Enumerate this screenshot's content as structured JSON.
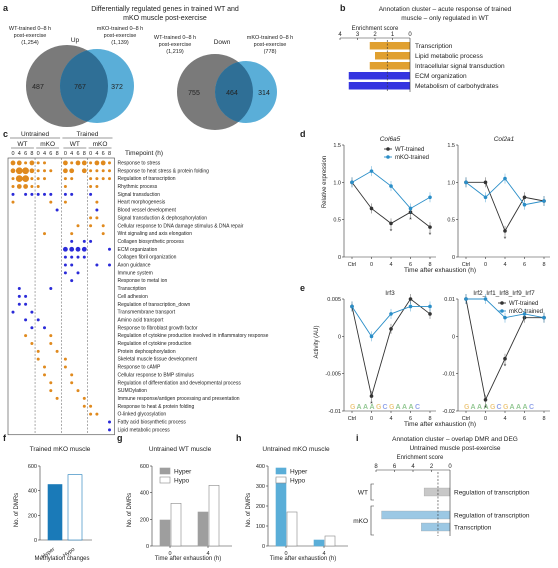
{
  "panels": {
    "a": {
      "label": "a",
      "title_line1": "Differentially regulated genes in trained WT and",
      "title_line2": "mKO muscle post-exercise",
      "up": {
        "direction": "Up",
        "left_label1": "WT-trained 0–8 h",
        "left_label2": "post-exercise",
        "left_count": "(1,254)",
        "right_label1": "mKO-trained 0–8 h",
        "right_label2": "post-exercise",
        "right_count": "(1,139)",
        "only_left": "487",
        "overlap": "767",
        "only_right": "372"
      },
      "down": {
        "direction": "Down",
        "left_label1": "WT-trained 0–8 h",
        "left_label2": "post-exercise",
        "left_count": "(1,219)",
        "right_label1": "mKO-trained 0–8 h",
        "right_label2": "post-exercise",
        "right_count": "(778)",
        "only_left": "755",
        "overlap": "464",
        "only_right": "314"
      },
      "colors": {
        "wt": "#7a7a7a",
        "mko": "#5aaed8",
        "overlap": "#2f6f96"
      }
    },
    "b": {
      "label": "b",
      "title_line1": "Annotation cluster – acute response of trained",
      "title_line2": "muscle – only regulated in WT",
      "axis_title": "Enrichment score",
      "chart_data": {
        "type": "bar",
        "orientation": "horizontal",
        "xlabel": "Enrichment score",
        "xlim": [
          4,
          0
        ],
        "xticks": [
          4,
          3,
          2,
          1,
          0
        ],
        "threshold": 1.3,
        "categories": [
          "Transcription",
          "Lipid metabolic process",
          "Intracellular signal transduction",
          "ECM organization",
          "Metabolism of carbohydrates"
        ],
        "values": [
          2.3,
          2.0,
          2.3,
          3.5,
          3.5
        ],
        "colors": [
          "#e0a030",
          "#e0a030",
          "#e0a030",
          "#3535e0",
          "#3535e0"
        ]
      }
    },
    "c": {
      "label": "c",
      "groups": [
        {
          "name": "Untrained",
          "subgroups": [
            "WT",
            "mKO"
          ]
        },
        {
          "name": "Trained",
          "subgroups": [
            "WT",
            "mKO"
          ]
        }
      ],
      "timepoints": [
        "0",
        "4",
        "6",
        "8"
      ],
      "timepoint_label": "Timepoint (h)",
      "terms": [
        "Response to stress",
        "Response to heat stress & protein folding",
        "Regulation of transcription",
        "Rhythmic process",
        "Signal transduction",
        "Heart morphogenesis",
        "Blood vessel development",
        "Signal transduction & dephosphorylation",
        "Cellular response to DNA damage stimulus & DNA repair",
        "Wnt signaling and axis elongation",
        "Collagen biosynthetic process",
        "ECM organization",
        "Collagen fibril organization",
        "Axon guidance",
        "Immune system",
        "Response to metal ion",
        "Transcription",
        "Cell adhesion",
        "Regulation of transcription_down",
        "Transmembrane transport",
        "Amino acid transport",
        "Response to fibroblast growth factor",
        "Regulation of cytokine production involved in inflammatory response",
        "Regulation of cytokine production",
        "Protein dephosphorylation",
        "Skeletal muscle tissue development",
        "Response to cAMP",
        "Cellular response to BMP stimulus",
        "Regulation of differentiation and developmental process",
        "SUMOylation",
        "Immune response/antigen processing and presentation",
        "Response to heat & protein folding",
        "O-linked glycosylation",
        "Fatty acid biosynthetic process",
        "Lipid metabolic process"
      ],
      "dots": [
        [
          0,
          0,
          2
        ],
        [
          0,
          1,
          2
        ],
        [
          0,
          2,
          1
        ],
        [
          0,
          3,
          2
        ],
        [
          0,
          4,
          1
        ],
        [
          0,
          5,
          1
        ],
        [
          0,
          8,
          2
        ],
        [
          0,
          9,
          1
        ],
        [
          0,
          10,
          2
        ],
        [
          0,
          11,
          2
        ],
        [
          0,
          12,
          1
        ],
        [
          0,
          13,
          2
        ],
        [
          0,
          14,
          2
        ],
        [
          0,
          15,
          1
        ],
        [
          1,
          0,
          2
        ],
        [
          1,
          1,
          3
        ],
        [
          1,
          2,
          3
        ],
        [
          1,
          3,
          2
        ],
        [
          1,
          4,
          1
        ],
        [
          1,
          5,
          1
        ],
        [
          1,
          6,
          1
        ],
        [
          1,
          8,
          2
        ],
        [
          1,
          9,
          2
        ],
        [
          1,
          11,
          2
        ],
        [
          1,
          12,
          1
        ],
        [
          1,
          13,
          1
        ],
        [
          1,
          14,
          1
        ],
        [
          1,
          15,
          1
        ],
        [
          2,
          0,
          1
        ],
        [
          2,
          1,
          3
        ],
        [
          2,
          2,
          3
        ],
        [
          2,
          3,
          1
        ],
        [
          2,
          4,
          1
        ],
        [
          2,
          5,
          1
        ],
        [
          2,
          8,
          1
        ],
        [
          2,
          9,
          1
        ],
        [
          2,
          12,
          1
        ],
        [
          2,
          13,
          1
        ],
        [
          2,
          14,
          1
        ],
        [
          2,
          15,
          1
        ],
        [
          3,
          0,
          1
        ],
        [
          3,
          1,
          2
        ],
        [
          3,
          2,
          2
        ],
        [
          3,
          3,
          1
        ],
        [
          3,
          4,
          1
        ],
        [
          3,
          8,
          1
        ],
        [
          3,
          12,
          1
        ],
        [
          3,
          13,
          1
        ],
        [
          4,
          0,
          1
        ],
        [
          4,
          2,
          1
        ],
        [
          4,
          3,
          1
        ],
        [
          4,
          4,
          1
        ],
        [
          4,
          5,
          1
        ],
        [
          4,
          6,
          1
        ],
        [
          4,
          8,
          1
        ],
        [
          4,
          9,
          1
        ],
        [
          4,
          12,
          1
        ],
        [
          5,
          0,
          1
        ],
        [
          5,
          6,
          1
        ],
        [
          5,
          8,
          1
        ],
        [
          5,
          13,
          1
        ],
        [
          6,
          7,
          1
        ],
        [
          6,
          13,
          1
        ],
        [
          7,
          12,
          1
        ],
        [
          7,
          13,
          1
        ],
        [
          8,
          10,
          1
        ],
        [
          8,
          12,
          1
        ],
        [
          8,
          14,
          1
        ],
        [
          9,
          5,
          1
        ],
        [
          9,
          9,
          1
        ],
        [
          9,
          14,
          1
        ],
        [
          10,
          9,
          1
        ],
        [
          10,
          11,
          1
        ],
        [
          10,
          12,
          1
        ],
        [
          11,
          8,
          2
        ],
        [
          11,
          9,
          2
        ],
        [
          11,
          10,
          2
        ],
        [
          11,
          11,
          2
        ],
        [
          11,
          15,
          1
        ],
        [
          12,
          8,
          1
        ],
        [
          12,
          9,
          1
        ],
        [
          12,
          10,
          1
        ],
        [
          12,
          11,
          1
        ],
        [
          13,
          8,
          1
        ],
        [
          13,
          9,
          1
        ],
        [
          13,
          13,
          1
        ],
        [
          13,
          15,
          1
        ],
        [
          14,
          8,
          1
        ],
        [
          14,
          10,
          1
        ],
        [
          15,
          9,
          1
        ],
        [
          16,
          1,
          1
        ],
        [
          16,
          6,
          1
        ],
        [
          17,
          1,
          1
        ],
        [
          17,
          2,
          1
        ],
        [
          18,
          1,
          1
        ],
        [
          18,
          2,
          1
        ],
        [
          19,
          0,
          1
        ],
        [
          19,
          3,
          1
        ],
        [
          20,
          2,
          1
        ],
        [
          20,
          4,
          1
        ],
        [
          21,
          3,
          1
        ],
        [
          21,
          5,
          1
        ],
        [
          22,
          2,
          1
        ],
        [
          22,
          6,
          1
        ],
        [
          23,
          3,
          1
        ],
        [
          23,
          6,
          1
        ],
        [
          24,
          4,
          1
        ],
        [
          24,
          7,
          1
        ],
        [
          25,
          4,
          1
        ],
        [
          25,
          8,
          1
        ],
        [
          26,
          5,
          1
        ],
        [
          26,
          8,
          1
        ],
        [
          27,
          5,
          1
        ],
        [
          27,
          9,
          1
        ],
        [
          28,
          6,
          1
        ],
        [
          28,
          9,
          1
        ],
        [
          29,
          6,
          1
        ],
        [
          29,
          10,
          1
        ],
        [
          30,
          7,
          1
        ],
        [
          30,
          11,
          1
        ],
        [
          31,
          11,
          1
        ],
        [
          31,
          12,
          1
        ],
        [
          32,
          12,
          1
        ],
        [
          32,
          13,
          1
        ],
        [
          33,
          15,
          1
        ],
        [
          34,
          15,
          1
        ]
      ],
      "blue_rows": [
        4,
        6,
        10,
        11,
        12,
        13,
        14,
        15,
        16,
        17,
        18,
        19,
        20,
        21,
        33,
        34
      ]
    },
    "d": {
      "label": "d",
      "ylabel": "Relative expression",
      "xlabel": "Time after exhaustion (h)",
      "xticks": [
        "Ctrl",
        "0",
        "4",
        "6",
        "8"
      ],
      "legend": [
        "WT-trained",
        "mKO-trained"
      ],
      "charts": [
        {
          "gene": "Col6a5",
          "chart_data": {
            "type": "line",
            "ylim": [
              0,
              1.5
            ],
            "yticks": [
              0,
              0.5,
              1.0,
              1.5
            ],
            "series": [
              {
                "name": "WT-trained",
                "values": [
                  1.0,
                  0.65,
                  0.45,
                  0.6,
                  0.4
                ]
              },
              {
                "name": "mKO-trained",
                "values": [
                  1.0,
                  1.15,
                  0.95,
                  0.65,
                  0.8
                ]
              }
            ],
            "significant": [
              "*",
              "*",
              "*"
            ]
          }
        },
        {
          "gene": "Col2a1",
          "chart_data": {
            "type": "line",
            "ylim": [
              0,
              1.5
            ],
            "yticks": [
              0,
              0.5,
              1.0,
              1.5
            ],
            "series": [
              {
                "name": "WT-trained",
                "values": [
                  1.0,
                  1.0,
                  0.35,
                  0.8,
                  0.75
                ]
              },
              {
                "name": "mKO-trained",
                "values": [
                  1.0,
                  0.8,
                  1.05,
                  0.7,
                  0.75
                ]
              }
            ],
            "significant": [
              "*"
            ]
          }
        }
      ]
    },
    "e": {
      "label": "e",
      "ylabel": "Activity (AU)",
      "xlabel": "Time after exhaustion (h)",
      "xticks": [
        "Ctrl",
        "0",
        "4",
        "6",
        "8"
      ],
      "legend": [
        "WT-trained",
        "mKO-trained"
      ],
      "charts": [
        {
          "motif": "Irf3",
          "chart_data": {
            "type": "line",
            "ylim": [
              -0.01,
              0.005
            ],
            "yticks": [
              -0.01,
              -0.005,
              0,
              0.005
            ],
            "series": [
              {
                "name": "WT-trained",
                "values": [
                  0.004,
                  -0.008,
                  0.001,
                  0.005,
                  0.003
                ]
              },
              {
                "name": "mKO-trained",
                "values": [
                  0.004,
                  0.0,
                  0.003,
                  0.004,
                  0.004
                ]
              }
            ],
            "significant": [
              "*"
            ]
          }
        },
        {
          "motif": "Irf2_Irf1_Irf8_Irf9_Irf7",
          "chart_data": {
            "type": "line",
            "ylim": [
              -0.02,
              0.01
            ],
            "yticks": [
              -0.02,
              -0.01,
              0,
              0.01
            ],
            "series": [
              {
                "name": "WT-trained",
                "values": [
                  0.01,
                  -0.017,
                  -0.006,
                  0.005,
                  0.005
                ]
              },
              {
                "name": "mKO-trained",
                "values": [
                  0.01,
                  0.01,
                  0.005,
                  0.006,
                  0.005
                ]
              }
            ],
            "significant": [
              "*",
              "*"
            ]
          }
        }
      ]
    },
    "f": {
      "label": "f",
      "title": "Trained mKO muscle",
      "ylabel": "No. of DMRs",
      "xlabel": "Methylation changes",
      "chart_data": {
        "type": "bar",
        "categories": [
          "Hyper",
          "Hypo"
        ],
        "values": [
          450,
          530
        ],
        "ylim": [
          0,
          600
        ],
        "yticks": [
          0,
          200,
          400,
          600
        ],
        "colors": [
          "#1a7ab8",
          "#ffffff"
        ]
      }
    },
    "g": {
      "label": "g",
      "title": "Untrained WT muscle",
      "ylabel": "No. of DMRs",
      "xlabel": "Time after exhaustion (h)",
      "legend": [
        "Hyper",
        "Hypo"
      ],
      "chart_data": {
        "type": "bar",
        "categories": [
          "0",
          "4"
        ],
        "series": [
          {
            "name": "Hyper",
            "values": [
              195,
              255
            ]
          },
          {
            "name": "Hypo",
            "values": [
              320,
              455
            ]
          }
        ],
        "ylim": [
          0,
          600
        ],
        "yticks": [
          0,
          200,
          400,
          600
        ],
        "colors": [
          "#9e9e9e",
          "#ffffff"
        ]
      }
    },
    "h": {
      "label": "h",
      "title": "Untrained mKO muscle",
      "ylabel": "No. of DMRs",
      "xlabel": "Time after exhaustion (h)",
      "legend": [
        "Hyper",
        "Hypo"
      ],
      "chart_data": {
        "type": "bar",
        "categories": [
          "0",
          "4"
        ],
        "series": [
          {
            "name": "Hyper",
            "values": [
              340,
              30
            ]
          },
          {
            "name": "Hypo",
            "values": [
              170,
              50
            ]
          }
        ],
        "ylim": [
          0,
          400
        ],
        "yticks": [
          0,
          100,
          200,
          300,
          400
        ],
        "colors": [
          "#5aaed8",
          "#ffffff"
        ]
      }
    },
    "i": {
      "label": "i",
      "title_line1": "Annotation cluster – overlap DMR and DEG",
      "title_line2": "Untrained muscle post-exercise",
      "axis_title": "Enrichment score",
      "chart_data": {
        "type": "bar",
        "orientation": "horizontal",
        "xlabel": "Enrichment score",
        "xlim": [
          8,
          0
        ],
        "xticks": [
          8,
          6,
          4,
          2,
          0
        ],
        "threshold": 1.3,
        "groups": [
          "WT",
          "mKO"
        ],
        "categories": [
          "Regulation of transcription",
          "Regulation of transcription",
          "Transcription"
        ],
        "values": [
          2.8,
          7.4,
          3.1
        ],
        "colors": [
          "#c8c8c8",
          "#9cc8e4",
          "#9cc8e4"
        ]
      }
    }
  }
}
